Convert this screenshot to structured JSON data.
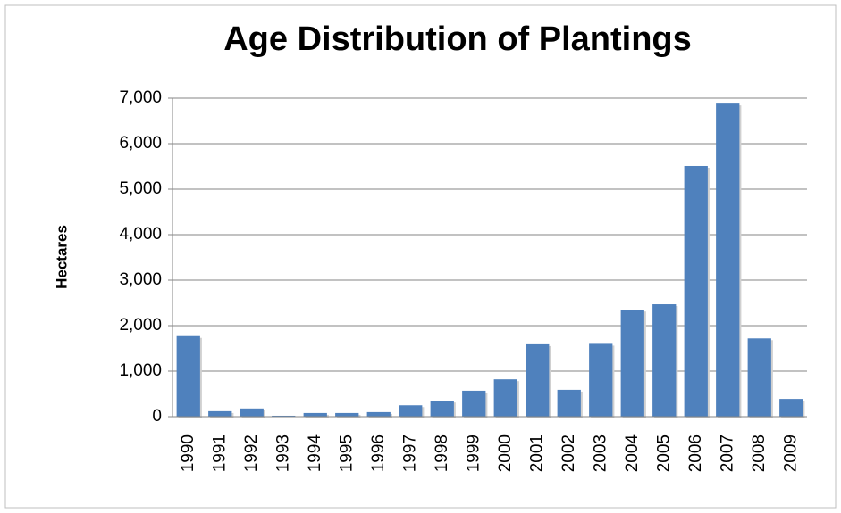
{
  "chart_data": {
    "type": "bar",
    "title": "Age Distribution of Plantings",
    "ylabel": "Hectares",
    "categories": [
      "1990",
      "1991",
      "1992",
      "1993",
      "1994",
      "1995",
      "1996",
      "1997",
      "1998",
      "1999",
      "2000",
      "2001",
      "2002",
      "2003",
      "2004",
      "2005",
      "2006",
      "2007",
      "2008",
      "2009"
    ],
    "values": [
      1770,
      120,
      180,
      20,
      80,
      80,
      100,
      250,
      350,
      570,
      820,
      1590,
      590,
      1600,
      2350,
      2470,
      5510,
      6880,
      1720,
      390
    ],
    "color": "#4f81bd",
    "ylim": [
      0,
      7000
    ],
    "yticks": [
      0,
      {
        "value": 1000,
        "label": "1,000"
      },
      {
        "value": 2000,
        "label": "2,000"
      },
      {
        "value": 3000,
        "label": "3,000"
      },
      {
        "value": 4000,
        "label": "4,000"
      },
      {
        "value": 5000,
        "label": "5,000"
      },
      {
        "value": 6000,
        "label": "6,000"
      },
      {
        "value": 7000,
        "label": "7,000"
      }
    ],
    "grid": true
  }
}
